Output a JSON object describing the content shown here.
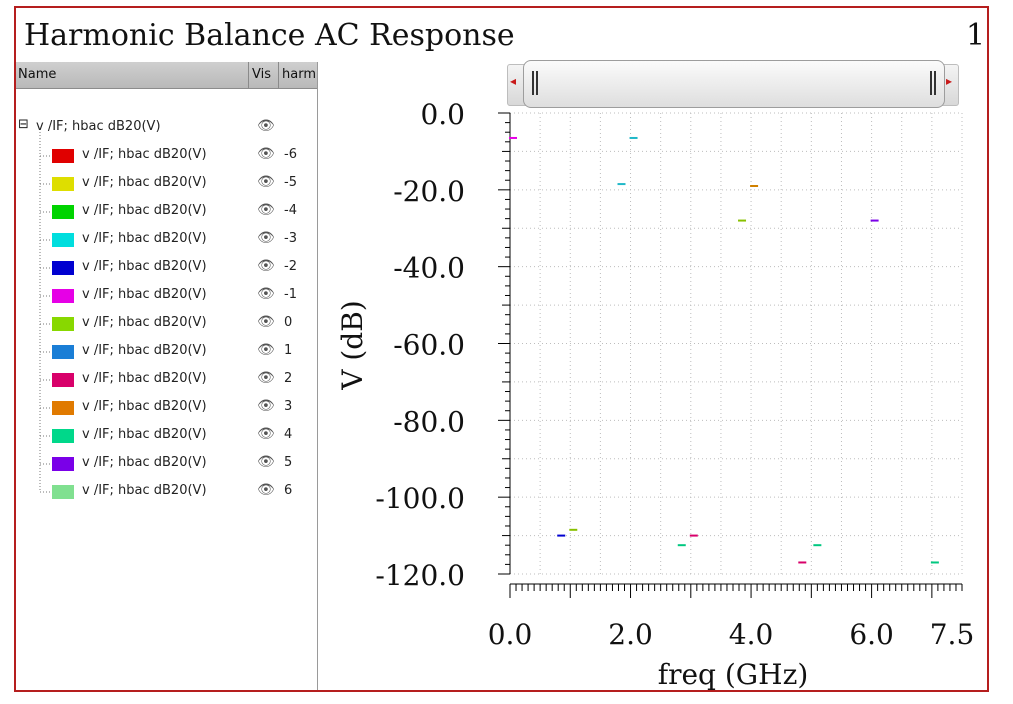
{
  "window": {
    "title": "Harmonic Balance AC Response",
    "page_number": "1"
  },
  "list": {
    "headers": {
      "name": "Name",
      "vis": "Vis",
      "harm": "harm"
    },
    "parent": {
      "label": "v /IF; hbac dB20(V)"
    },
    "rows": [
      {
        "label": "v /IF; hbac dB20(V)",
        "harm": "-6",
        "color": "#e00000"
      },
      {
        "label": "v /IF; hbac dB20(V)",
        "harm": "-5",
        "color": "#dede00"
      },
      {
        "label": "v /IF; hbac dB20(V)",
        "harm": "-4",
        "color": "#00d400"
      },
      {
        "label": "v /IF; hbac dB20(V)",
        "harm": "-3",
        "color": "#00dede"
      },
      {
        "label": "v /IF; hbac dB20(V)",
        "harm": "-2",
        "color": "#0000d0"
      },
      {
        "label": "v /IF; hbac dB20(V)",
        "harm": "-1",
        "color": "#e600e6"
      },
      {
        "label": "v /IF; hbac dB20(V)",
        "harm": "0",
        "color": "#88d800"
      },
      {
        "label": "v /IF; hbac dB20(V)",
        "harm": "1",
        "color": "#1a7ed6"
      },
      {
        "label": "v /IF; hbac dB20(V)",
        "harm": "2",
        "color": "#d8006a"
      },
      {
        "label": "v /IF; hbac dB20(V)",
        "harm": "3",
        "color": "#e07a00"
      },
      {
        "label": "v /IF; hbac dB20(V)",
        "harm": "4",
        "color": "#00d88a"
      },
      {
        "label": "v /IF; hbac dB20(V)",
        "harm": "5",
        "color": "#7a00e8"
      },
      {
        "label": "v /IF; hbac dB20(V)",
        "harm": "6",
        "color": "#80e090"
      }
    ]
  },
  "chart_data": {
    "type": "scatter",
    "xlabel": "freq (GHz)",
    "ylabel": "V (dB)",
    "xlim": [
      0,
      7.5
    ],
    "ylim": [
      -120,
      0
    ],
    "x_ticks": [
      "0.0",
      "2.0",
      "4.0",
      "6.0",
      "7.5"
    ],
    "y_ticks": [
      "0.0",
      "-20.0",
      "-40.0",
      "-60.0",
      "-80.0",
      "-100.0",
      "-120.0"
    ],
    "grid": true,
    "series": [
      {
        "harm": "-6",
        "color": "#e00000",
        "points": []
      },
      {
        "harm": "-5",
        "color": "#c8c800",
        "points": []
      },
      {
        "harm": "-4",
        "color": "#00c000",
        "points": []
      },
      {
        "harm": "-3",
        "color": "#20b8c8",
        "points": [
          [
            1.85,
            -18.5
          ],
          [
            2.05,
            -6.5
          ]
        ]
      },
      {
        "harm": "-2",
        "color": "#0000d0",
        "points": [
          [
            0.85,
            -110
          ]
        ]
      },
      {
        "harm": "-1",
        "color": "#e600e6",
        "points": [
          [
            0.05,
            -6.5
          ]
        ]
      },
      {
        "harm": "0",
        "color": "#88c000",
        "points": [
          [
            1.05,
            -108.5
          ],
          [
            3.85,
            -28
          ]
        ]
      },
      {
        "harm": "1",
        "color": "#1a7ed6",
        "points": []
      },
      {
        "harm": "2",
        "color": "#d8006a",
        "points": [
          [
            3.05,
            -110
          ],
          [
            4.85,
            -117
          ]
        ]
      },
      {
        "harm": "3",
        "color": "#d08000",
        "points": [
          [
            4.05,
            -19
          ]
        ]
      },
      {
        "harm": "4",
        "color": "#00c880",
        "points": [
          [
            2.85,
            -112.5
          ],
          [
            5.1,
            -112.5
          ],
          [
            7.05,
            -117
          ]
        ]
      },
      {
        "harm": "5",
        "color": "#7a00e8",
        "points": [
          [
            6.05,
            -28
          ]
        ]
      },
      {
        "harm": "6",
        "color": "#80e090",
        "points": []
      }
    ]
  }
}
